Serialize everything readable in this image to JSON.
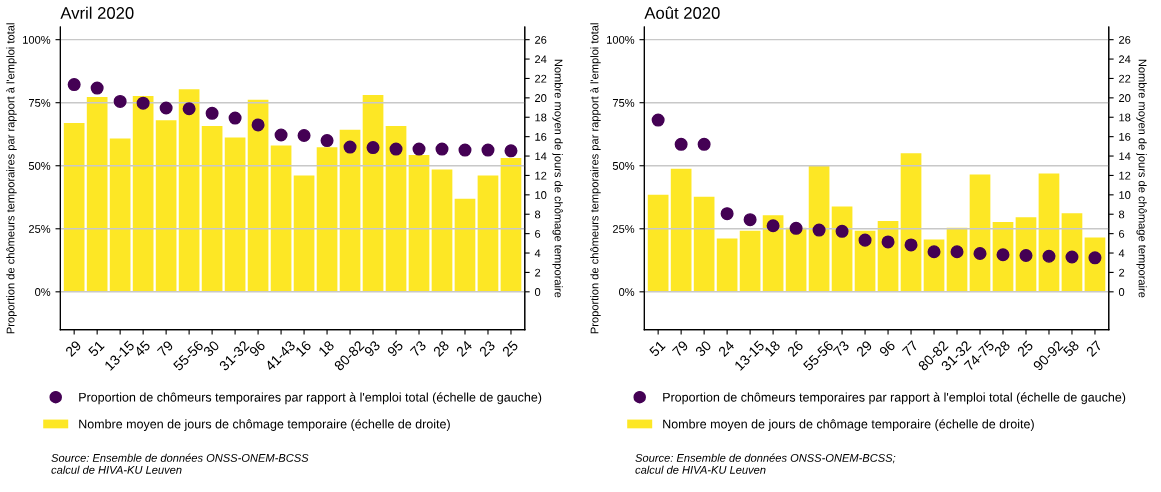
{
  "chart_data": [
    {
      "type": "bar",
      "title": "Avril 2020",
      "ylabel": "Proportion de chômeurs temporaires par rapport à l'emploi total",
      "y2label": "Nombre moyen de jours de chômage temporaire",
      "categories": [
        "29",
        "51",
        "13-15",
        "45",
        "79",
        "55-56",
        "30",
        "31-32",
        "96",
        "41-43",
        "16",
        "18",
        "80-82",
        "93",
        "95",
        "73",
        "28",
        "24",
        "23",
        "25"
      ],
      "series": [
        {
          "name": "Proportion de chômeurs temporaires par rapport à l'emploi total (échelle de gauche)",
          "type": "scatter",
          "color": "#440154",
          "values": [
            82.2,
            80.8,
            75.5,
            74.8,
            72.9,
            72.6,
            70.8,
            68.9,
            66.2,
            62.2,
            62.0,
            60.0,
            57.4,
            57.2,
            56.6,
            56.6,
            56.6,
            56.2,
            56.2,
            55.9
          ]
        },
        {
          "name": "Nombre moyen de jours de chômage temporaire (échelle de droite)",
          "axis": "y2",
          "color": "#fde725",
          "values": [
            17.4,
            20.1,
            15.8,
            20.2,
            17.7,
            20.9,
            17.1,
            15.9,
            19.8,
            15.1,
            12.0,
            14.9,
            16.7,
            20.3,
            17.1,
            14.1,
            12.6,
            9.6,
            12.0,
            13.8
          ]
        }
      ],
      "ylim": [
        -15,
        105
      ],
      "yticks": [
        {
          "value": 0,
          "label": "0%"
        },
        {
          "value": 25,
          "label": "25%"
        },
        {
          "value": 50,
          "label": "50%"
        },
        {
          "value": 75,
          "label": "75%"
        },
        {
          "value": 100,
          "label": "100%"
        }
      ],
      "y2lim": [
        -3.9,
        27.3
      ],
      "y2ticks": [
        0,
        2,
        4,
        6,
        8,
        10,
        12,
        14,
        16,
        18,
        20,
        22,
        24,
        26
      ],
      "grid": "y",
      "legend": "bottom",
      "marker": "circle",
      "annotations": [
        "Source: Ensemble de données ONSS-ONEM-BCSS\ncalcul de HIVA-KU Leuven"
      ]
    },
    {
      "type": "bar",
      "title": "Août 2020",
      "ylabel": "Proportion de chômeurs temporaires par rapport à l'emploi total",
      "y2label": "Nombre moyen de jours de chômage temporaire",
      "categories": [
        "51",
        "79",
        "30",
        "24",
        "13-15",
        "18",
        "26",
        "55-56",
        "73",
        "29",
        "96",
        "77",
        "80-82",
        "31-32",
        "74-75",
        "28",
        "25",
        "90-92",
        "58",
        "27"
      ],
      "series": [
        {
          "name": "Proportion de chômeurs temporaires par rapport à l'emploi total (échelle de gauche)",
          "type": "scatter",
          "color": "#440154",
          "values": [
            68.1,
            58.5,
            58.5,
            31.0,
            28.6,
            26.2,
            25.2,
            24.5,
            24.0,
            20.5,
            19.8,
            18.6,
            15.9,
            15.9,
            15.2,
            14.7,
            14.4,
            14.1,
            13.8,
            13.5
          ]
        },
        {
          "name": "Nombre moyen de jours de chômage temporaire (échelle de droite)",
          "axis": "y2",
          "color": "#fde725",
          "values": [
            10.0,
            12.7,
            9.8,
            5.5,
            6.3,
            7.9,
            6.6,
            13.0,
            8.8,
            6.3,
            7.3,
            14.3,
            5.4,
            6.6,
            12.1,
            7.2,
            7.7,
            12.2,
            8.1,
            5.6
          ]
        }
      ],
      "ylim": [
        -15,
        105
      ],
      "yticks": [
        {
          "value": 0,
          "label": "0%"
        },
        {
          "value": 25,
          "label": "25%"
        },
        {
          "value": 50,
          "label": "50%"
        },
        {
          "value": 75,
          "label": "75%"
        },
        {
          "value": 100,
          "label": "100%"
        }
      ],
      "y2lim": [
        -3.9,
        27.3
      ],
      "y2ticks": [
        0,
        2,
        4,
        6,
        8,
        10,
        12,
        14,
        16,
        18,
        20,
        22,
        24,
        26
      ],
      "grid": "y",
      "legend": "bottom",
      "marker": "circle",
      "annotations": [
        "Source: Ensemble de données ONSS-ONEM-BCSS;\ncalcul de HIVA-KU Leuven"
      ]
    }
  ]
}
